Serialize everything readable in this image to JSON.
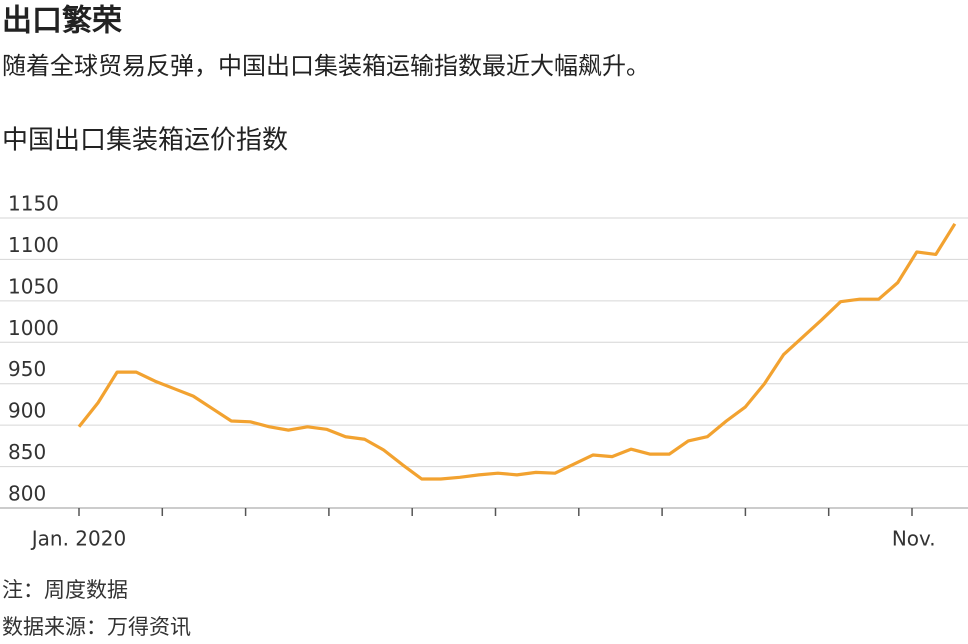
{
  "chart_data": {
    "type": "line",
    "title": "出口繁荣",
    "subtitle": "随着全球贸易反弹，中国出口集装箱运输指数最近大幅飙升。",
    "chart_title": "中国出口集装箱运价指数",
    "note": "注：周度数据",
    "source": "数据来源：万得资讯",
    "categories": [
      "Jan. 2020",
      null,
      null,
      null,
      null,
      null,
      null,
      null,
      null,
      null,
      null,
      null,
      null,
      null,
      null,
      null,
      null,
      null,
      null,
      null,
      null,
      null,
      null,
      null,
      null,
      null,
      null,
      null,
      null,
      null,
      null,
      null,
      null,
      null,
      null,
      null,
      null,
      null,
      null,
      null,
      null,
      null,
      null,
      null,
      "Nov.",
      null,
      null
    ],
    "series": [
      {
        "name": "中国出口集装箱运价指数",
        "color": "#f2a230",
        "values": [
          898,
          927,
          964,
          964,
          953,
          944,
          935,
          920,
          905,
          904,
          898,
          894,
          898,
          895,
          886,
          883,
          870,
          852,
          835,
          835,
          837,
          840,
          842,
          840,
          843,
          842,
          853,
          864,
          862,
          871,
          865,
          865,
          881,
          886,
          905,
          922,
          950,
          985,
          1006,
          1027,
          1049,
          1052,
          1052,
          1072,
          1109,
          1106,
          1143
        ]
      }
    ],
    "ylim": [
      800,
      1150
    ],
    "yticks": [
      800,
      850,
      900,
      950,
      1000,
      1050,
      1100,
      1150
    ],
    "grid": true
  }
}
